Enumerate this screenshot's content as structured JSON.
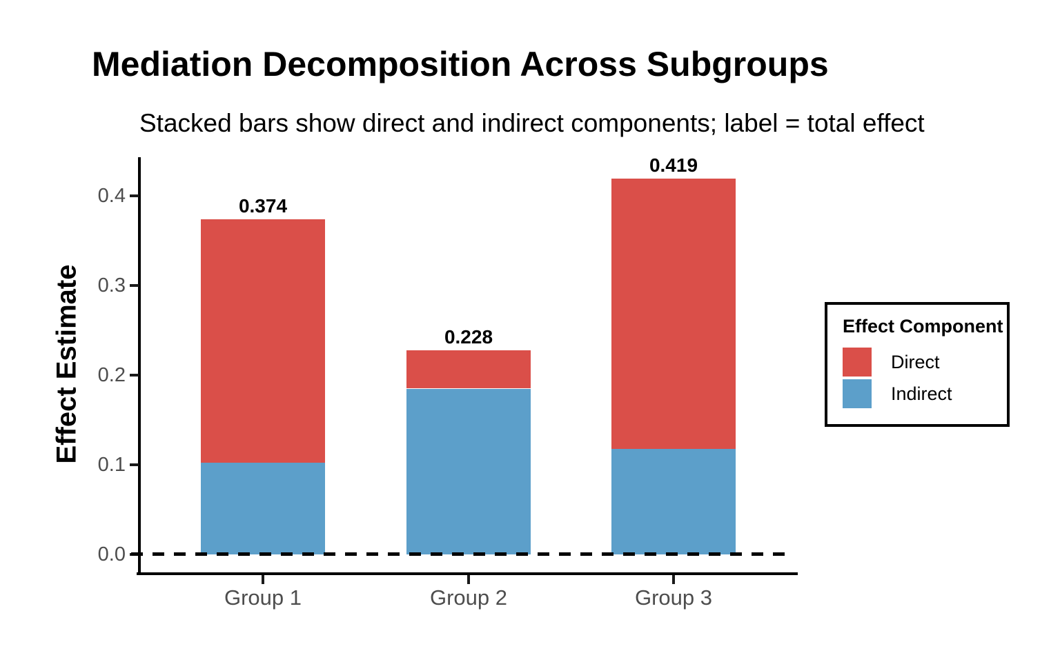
{
  "chart_data": {
    "type": "bar",
    "stacked": true,
    "title": "Mediation Decomposition Across Subgroups",
    "subtitle": "Stacked bars show direct and indirect components; label = total effect",
    "xlabel": "",
    "ylabel": "Effect Estimate",
    "categories": [
      "Group 1",
      "Group 2",
      "Group 3"
    ],
    "series": [
      {
        "name": "Direct",
        "color": "#DA4F49",
        "values": [
          0.272,
          0.043,
          0.301
        ]
      },
      {
        "name": "Indirect",
        "color": "#5C9FCA",
        "values": [
          0.102,
          0.185,
          0.118
        ]
      }
    ],
    "totals": [
      0.374,
      0.228,
      0.419
    ],
    "total_labels": [
      "0.374",
      "0.228",
      "0.419"
    ],
    "ylim": [
      0,
      0.44
    ],
    "yticks": [
      0,
      0.1,
      0.2,
      0.3,
      0.4
    ],
    "ytick_labels": [
      "0.0",
      "0.1",
      "0.2",
      "0.3",
      "0.4"
    ],
    "reference_line": {
      "y": 0,
      "style": "dashed",
      "color": "#000000"
    },
    "grid": false,
    "legend": {
      "title": "Effect Component",
      "position": "right",
      "entries": [
        "Direct",
        "Indirect"
      ]
    },
    "text_colors": {
      "axis_text": "#4d4d4d",
      "title": "#000000"
    }
  }
}
